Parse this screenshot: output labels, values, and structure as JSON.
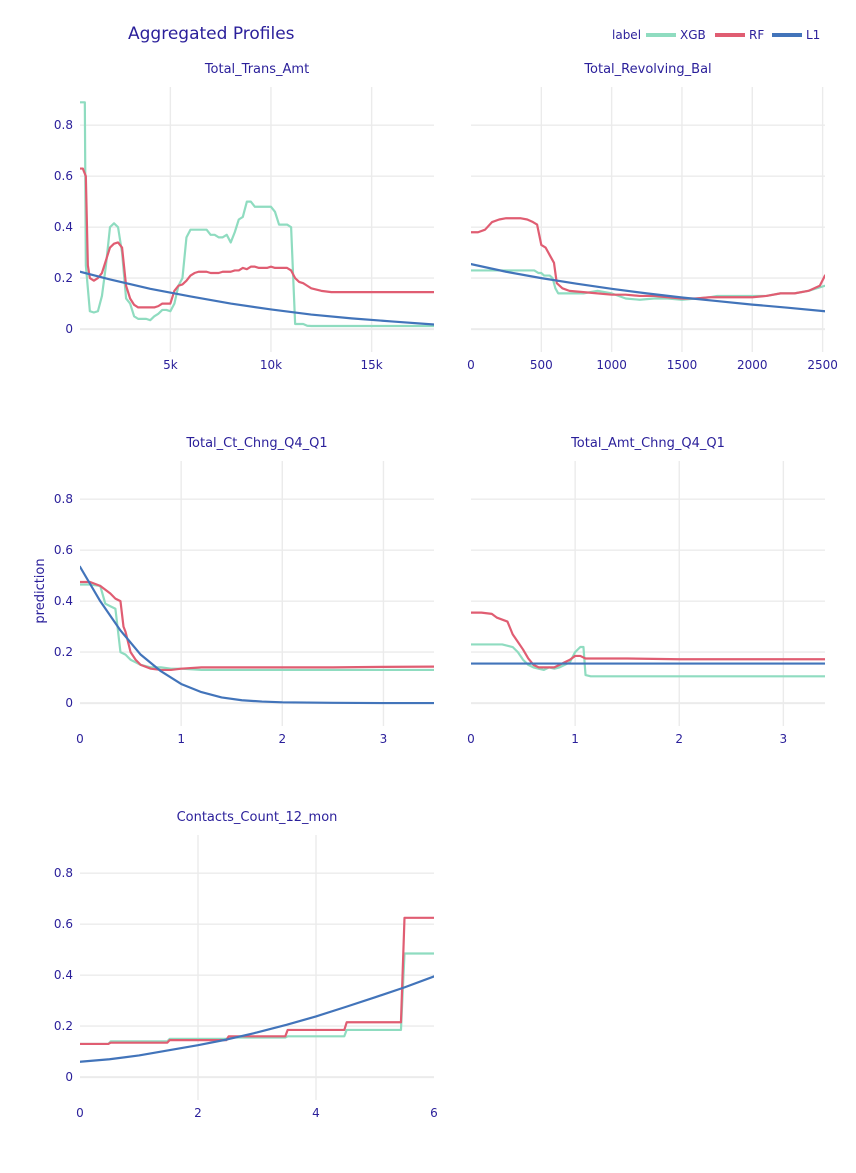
{
  "figure": {
    "title": "Aggregated Profiles",
    "ylabel": "prediction",
    "legend_title": "label",
    "legend_position": "top-right"
  },
  "colors": {
    "XGB": "#8fdcc0",
    "RF": "#e05d72",
    "L1": "#4274ba"
  },
  "chart_data": [
    {
      "type": "line",
      "title": "Total_Trans_Amt",
      "xlim": [
        510,
        18100
      ],
      "ylim": [
        -0.09,
        0.95
      ],
      "xticks": [
        5000,
        10000,
        15000
      ],
      "xtick_labels": [
        "5k",
        "10k",
        "15k"
      ],
      "yticks": [
        0,
        0.2,
        0.4,
        0.6,
        0.8
      ],
      "ytick_labels": [
        "0",
        "0.2",
        "0.4",
        "0.6",
        "0.8"
      ],
      "grid": true,
      "series": [
        {
          "name": "XGB",
          "x": [
            510,
            750,
            800,
            1000,
            1200,
            1400,
            1600,
            1800,
            2000,
            2200,
            2400,
            2600,
            2800,
            3000,
            3200,
            3400,
            3600,
            3800,
            4000,
            4200,
            4400,
            4600,
            4800,
            5000,
            5200,
            5400,
            5600,
            5800,
            6000,
            6200,
            6400,
            6600,
            6800,
            7000,
            7200,
            7400,
            7600,
            7800,
            8000,
            8200,
            8400,
            8600,
            8800,
            9000,
            9200,
            9400,
            9600,
            9800,
            10000,
            10200,
            10400,
            10600,
            10800,
            11000,
            11100,
            11200,
            11400,
            11600,
            11800,
            12000,
            13000,
            14000,
            15000,
            16000,
            17000,
            18100
          ],
          "y": [
            0.89,
            0.89,
            0.25,
            0.07,
            0.065,
            0.07,
            0.13,
            0.25,
            0.4,
            0.415,
            0.4,
            0.3,
            0.12,
            0.1,
            0.05,
            0.04,
            0.04,
            0.04,
            0.035,
            0.05,
            0.06,
            0.075,
            0.075,
            0.07,
            0.1,
            0.17,
            0.2,
            0.36,
            0.39,
            0.39,
            0.39,
            0.39,
            0.39,
            0.37,
            0.37,
            0.36,
            0.36,
            0.37,
            0.34,
            0.38,
            0.43,
            0.44,
            0.5,
            0.5,
            0.48,
            0.48,
            0.48,
            0.48,
            0.48,
            0.46,
            0.41,
            0.41,
            0.41,
            0.4,
            0.21,
            0.02,
            0.02,
            0.02,
            0.013,
            0.012,
            0.012,
            0.012,
            0.012,
            0.012,
            0.012,
            0.012
          ]
        },
        {
          "name": "RF",
          "x": [
            510,
            650,
            800,
            900,
            1000,
            1200,
            1400,
            1600,
            1800,
            2000,
            2200,
            2400,
            2600,
            2800,
            3000,
            3200,
            3400,
            3600,
            3800,
            4000,
            4200,
            4400,
            4600,
            4800,
            5000,
            5200,
            5400,
            5600,
            5800,
            6000,
            6200,
            6400,
            6600,
            6800,
            7000,
            7200,
            7400,
            7600,
            7800,
            8000,
            8200,
            8400,
            8600,
            8800,
            9000,
            9200,
            9400,
            9600,
            9800,
            10000,
            10200,
            10400,
            10600,
            10800,
            11000,
            11200,
            11400,
            11600,
            11800,
            12000,
            12500,
            13000,
            13500,
            14000,
            15000,
            16000,
            17000,
            18100
          ],
          "y": [
            0.63,
            0.63,
            0.6,
            0.25,
            0.2,
            0.19,
            0.2,
            0.22,
            0.27,
            0.32,
            0.335,
            0.34,
            0.32,
            0.17,
            0.12,
            0.095,
            0.085,
            0.085,
            0.085,
            0.085,
            0.085,
            0.09,
            0.1,
            0.1,
            0.1,
            0.15,
            0.17,
            0.175,
            0.19,
            0.21,
            0.22,
            0.225,
            0.225,
            0.225,
            0.22,
            0.22,
            0.22,
            0.225,
            0.225,
            0.225,
            0.23,
            0.23,
            0.24,
            0.235,
            0.245,
            0.245,
            0.24,
            0.24,
            0.24,
            0.245,
            0.24,
            0.24,
            0.24,
            0.24,
            0.23,
            0.2,
            0.185,
            0.18,
            0.17,
            0.16,
            0.15,
            0.145,
            0.145,
            0.145,
            0.145,
            0.145,
            0.145,
            0.145
          ]
        },
        {
          "name": "L1",
          "x": [
            510,
            2000,
            4000,
            6000,
            8000,
            10000,
            12000,
            14000,
            16000,
            18100
          ],
          "y": [
            0.225,
            0.195,
            0.158,
            0.128,
            0.1,
            0.077,
            0.057,
            0.042,
            0.03,
            0.018
          ]
        }
      ]
    },
    {
      "type": "line",
      "title": "Total_Revolving_Bal",
      "xlim": [
        0,
        2517
      ],
      "ylim": [
        -0.09,
        0.95
      ],
      "xticks": [
        0,
        500,
        1000,
        1500,
        2000,
        2500
      ],
      "xtick_labels": [
        "0",
        "500",
        "1000",
        "1500",
        "2000",
        "2500"
      ],
      "yticks": [
        0,
        0.2,
        0.4,
        0.6,
        0.8
      ],
      "ytick_labels": [
        "0",
        "0.2",
        "0.4",
        "0.6",
        "0.8"
      ],
      "grid": true,
      "series": [
        {
          "name": "XGB",
          "x": [
            0,
            100,
            200,
            300,
            400,
            450,
            480,
            500,
            520,
            560,
            580,
            600,
            620,
            650,
            700,
            800,
            900,
            1000,
            1100,
            1200,
            1300,
            1400,
            1500,
            1600,
            1700,
            1750,
            1800,
            1900,
            2000,
            2100,
            2200,
            2300,
            2400,
            2517
          ],
          "y": [
            0.23,
            0.23,
            0.23,
            0.23,
            0.23,
            0.23,
            0.22,
            0.22,
            0.21,
            0.21,
            0.2,
            0.16,
            0.14,
            0.14,
            0.14,
            0.14,
            0.15,
            0.14,
            0.12,
            0.115,
            0.12,
            0.12,
            0.115,
            0.12,
            0.125,
            0.13,
            0.13,
            0.13,
            0.13,
            0.13,
            0.14,
            0.14,
            0.15,
            0.17
          ]
        },
        {
          "name": "RF",
          "x": [
            0,
            50,
            100,
            150,
            200,
            250,
            300,
            350,
            400,
            440,
            470,
            500,
            530,
            560,
            590,
            610,
            650,
            700,
            800,
            900,
            1000,
            1100,
            1200,
            1300,
            1400,
            1500,
            1600,
            1700,
            1800,
            1900,
            2000,
            2100,
            2200,
            2300,
            2400,
            2480,
            2517
          ],
          "y": [
            0.38,
            0.38,
            0.39,
            0.42,
            0.43,
            0.435,
            0.435,
            0.435,
            0.43,
            0.42,
            0.41,
            0.33,
            0.32,
            0.29,
            0.26,
            0.18,
            0.16,
            0.15,
            0.145,
            0.14,
            0.135,
            0.135,
            0.13,
            0.13,
            0.125,
            0.12,
            0.12,
            0.125,
            0.125,
            0.125,
            0.125,
            0.13,
            0.14,
            0.14,
            0.15,
            0.17,
            0.21
          ]
        },
        {
          "name": "L1",
          "x": [
            0,
            250,
            500,
            750,
            1000,
            1250,
            1500,
            1750,
            2000,
            2250,
            2517
          ],
          "y": [
            0.255,
            0.225,
            0.2,
            0.178,
            0.158,
            0.14,
            0.124,
            0.11,
            0.096,
            0.084,
            0.07
          ]
        }
      ]
    },
    {
      "type": "line",
      "title": "Total_Ct_Chng_Q4_Q1",
      "xlim": [
        0,
        3.5
      ],
      "ylim": [
        -0.09,
        0.95
      ],
      "xticks": [
        0,
        1,
        2,
        3
      ],
      "xtick_labels": [
        "0",
        "1",
        "2",
        "3"
      ],
      "yticks": [
        0,
        0.2,
        0.4,
        0.6,
        0.8
      ],
      "ytick_labels": [
        "0",
        "0.2",
        "0.4",
        "0.6",
        "0.8"
      ],
      "grid": true,
      "series": [
        {
          "name": "XGB",
          "x": [
            0,
            0.1,
            0.2,
            0.25,
            0.3,
            0.35,
            0.4,
            0.45,
            0.5,
            0.55,
            0.6,
            0.7,
            0.8,
            0.9,
            1.0,
            1.2,
            1.5,
            2.0,
            2.5,
            3.0,
            3.5
          ],
          "y": [
            0.465,
            0.465,
            0.46,
            0.39,
            0.38,
            0.37,
            0.2,
            0.19,
            0.17,
            0.16,
            0.15,
            0.14,
            0.14,
            0.135,
            0.135,
            0.13,
            0.13,
            0.13,
            0.13,
            0.13,
            0.13
          ]
        },
        {
          "name": "RF",
          "x": [
            0,
            0.1,
            0.2,
            0.3,
            0.35,
            0.4,
            0.43,
            0.45,
            0.5,
            0.55,
            0.6,
            0.7,
            0.8,
            0.9,
            1.0,
            1.2,
            1.5,
            2.0,
            2.5,
            3.0,
            3.5
          ],
          "y": [
            0.475,
            0.475,
            0.46,
            0.43,
            0.41,
            0.4,
            0.3,
            0.28,
            0.2,
            0.17,
            0.15,
            0.135,
            0.13,
            0.13,
            0.135,
            0.14,
            0.14,
            0.14,
            0.14,
            0.142,
            0.143
          ]
        },
        {
          "name": "L1",
          "x": [
            0,
            0.2,
            0.4,
            0.6,
            0.8,
            1.0,
            1.2,
            1.4,
            1.6,
            1.8,
            2.0,
            2.5,
            3.0,
            3.5
          ],
          "y": [
            0.535,
            0.4,
            0.285,
            0.19,
            0.125,
            0.075,
            0.043,
            0.022,
            0.011,
            0.006,
            0.003,
            0.001,
            0.0,
            0.0
          ]
        }
      ]
    },
    {
      "type": "line",
      "title": "Total_Amt_Chng_Q4_Q1",
      "xlim": [
        0,
        3.4
      ],
      "ylim": [
        -0.09,
        0.95
      ],
      "xticks": [
        0,
        1,
        2,
        3
      ],
      "xtick_labels": [
        "0",
        "1",
        "2",
        "3"
      ],
      "yticks": [
        0,
        0.2,
        0.4,
        0.6,
        0.8
      ],
      "ytick_labels": [
        "0",
        "0.2",
        "0.4",
        "0.6",
        "0.8"
      ],
      "grid": true,
      "series": [
        {
          "name": "XGB",
          "x": [
            0,
            0.1,
            0.2,
            0.3,
            0.4,
            0.45,
            0.5,
            0.55,
            0.6,
            0.65,
            0.7,
            0.75,
            0.8,
            0.85,
            0.9,
            0.95,
            1.0,
            1.05,
            1.08,
            1.1,
            1.15,
            1.2,
            1.5,
            2.0,
            2.5,
            3.0,
            3.4
          ],
          "y": [
            0.23,
            0.23,
            0.23,
            0.23,
            0.22,
            0.2,
            0.17,
            0.15,
            0.14,
            0.135,
            0.13,
            0.14,
            0.135,
            0.14,
            0.15,
            0.16,
            0.2,
            0.22,
            0.22,
            0.11,
            0.105,
            0.105,
            0.105,
            0.105,
            0.105,
            0.105,
            0.105
          ]
        },
        {
          "name": "RF",
          "x": [
            0,
            0.1,
            0.2,
            0.25,
            0.35,
            0.4,
            0.45,
            0.5,
            0.55,
            0.6,
            0.65,
            0.7,
            0.75,
            0.8,
            0.85,
            0.9,
            0.95,
            1.0,
            1.05,
            1.1,
            1.2,
            1.5,
            2.0,
            2.5,
            3.0,
            3.4
          ],
          "y": [
            0.355,
            0.355,
            0.35,
            0.335,
            0.32,
            0.27,
            0.24,
            0.21,
            0.175,
            0.15,
            0.14,
            0.14,
            0.14,
            0.14,
            0.15,
            0.16,
            0.17,
            0.185,
            0.185,
            0.175,
            0.175,
            0.175,
            0.172,
            0.172,
            0.172,
            0.172
          ]
        },
        {
          "name": "L1",
          "x": [
            0,
            1.0,
            2.0,
            3.4
          ],
          "y": [
            0.155,
            0.155,
            0.155,
            0.155
          ]
        }
      ]
    },
    {
      "type": "line",
      "title": "Contacts_Count_12_mon",
      "xlim": [
        0,
        6
      ],
      "ylim": [
        -0.09,
        0.95
      ],
      "xticks": [
        0,
        2,
        4,
        6
      ],
      "xtick_labels": [
        "0",
        "2",
        "4",
        "6"
      ],
      "yticks": [
        0,
        0.2,
        0.4,
        0.6,
        0.8
      ],
      "ytick_labels": [
        "0",
        "0.2",
        "0.4",
        "0.6",
        "0.8"
      ],
      "grid": true,
      "series": [
        {
          "name": "XGB",
          "x": [
            0,
            0.48,
            0.52,
            1.48,
            1.52,
            2.48,
            2.52,
            3.48,
            3.52,
            4.48,
            4.52,
            5.44,
            5.5,
            6.0
          ],
          "y": [
            0.13,
            0.13,
            0.14,
            0.14,
            0.15,
            0.15,
            0.155,
            0.155,
            0.16,
            0.16,
            0.185,
            0.185,
            0.485,
            0.485
          ]
        },
        {
          "name": "RF",
          "x": [
            0,
            0.48,
            0.52,
            1.48,
            1.52,
            2.48,
            2.52,
            3.48,
            3.52,
            4.48,
            4.52,
            5.44,
            5.5,
            6.0
          ],
          "y": [
            0.13,
            0.13,
            0.135,
            0.135,
            0.145,
            0.145,
            0.16,
            0.16,
            0.185,
            0.185,
            0.215,
            0.215,
            0.625,
            0.625
          ]
        },
        {
          "name": "L1",
          "x": [
            0,
            0.5,
            1,
            1.5,
            2,
            2.5,
            3,
            3.5,
            4,
            4.5,
            5,
            5.5,
            6
          ],
          "y": [
            0.06,
            0.07,
            0.085,
            0.105,
            0.125,
            0.148,
            0.175,
            0.205,
            0.238,
            0.275,
            0.313,
            0.352,
            0.395
          ]
        }
      ]
    }
  ]
}
